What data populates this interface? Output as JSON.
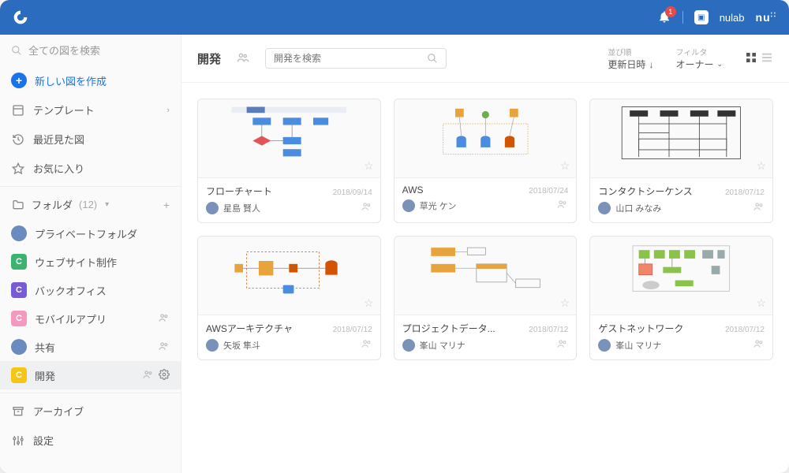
{
  "colors": {
    "topbar": "#2c6cbf",
    "primary": "#1a73e8",
    "badge": "#e54b4b"
  },
  "topbar": {
    "notification_count": "1",
    "brand_text": "nulab"
  },
  "sidebar": {
    "search_placeholder": "全ての図を検索",
    "create_label": "新しい図を作成",
    "templates_label": "テンプレート",
    "recent_label": "最近見た図",
    "favorites_label": "お気に入り",
    "folders_label": "フォルダ",
    "folders_count": "(12)",
    "folders": [
      {
        "label": "プライベートフォルダ",
        "type": "avatar",
        "color": ""
      },
      {
        "label": "ウェブサイト制作",
        "type": "badge",
        "color": "#3cb371",
        "letter": "C"
      },
      {
        "label": "バックオフィス",
        "type": "badge",
        "color": "#7a5ad6",
        "letter": "C"
      },
      {
        "label": "モバイルアプリ",
        "type": "badge",
        "color": "#f49ac1",
        "letter": "C",
        "shared": true
      },
      {
        "label": "共有",
        "type": "avatar",
        "color": "",
        "shared": true
      },
      {
        "label": "開発",
        "type": "badge",
        "color": "#f5c518",
        "letter": "C",
        "shared": true,
        "active": true,
        "settings": true
      }
    ],
    "archive_label": "アーカイブ",
    "settings_label": "設定"
  },
  "header": {
    "title": "開発",
    "search_placeholder": "開発を検索",
    "sort_label": "並び順",
    "sort_value": "更新日時",
    "filter_label": "フィルタ",
    "filter_value": "オーナー"
  },
  "cards": [
    {
      "title": "フローチャート",
      "date": "2018/09/14",
      "author": "星島 賢人",
      "thumb": "flowchart"
    },
    {
      "title": "AWS",
      "date": "2018/07/24",
      "author": "草光 ケン",
      "thumb": "aws"
    },
    {
      "title": "コンタクトシーケンス",
      "date": "2018/07/12",
      "author": "山口 みなみ",
      "thumb": "sequence"
    },
    {
      "title": "AWSアーキテクチャ",
      "date": "2018/07/12",
      "author": "矢坂 隼斗",
      "thumb": "aws2"
    },
    {
      "title": "プロジェクトデータ...",
      "date": "2018/07/12",
      "author": "峯山 マリナ",
      "thumb": "project"
    },
    {
      "title": "ゲストネットワーク",
      "date": "2018/07/12",
      "author": "峯山 マリナ",
      "thumb": "network"
    }
  ]
}
